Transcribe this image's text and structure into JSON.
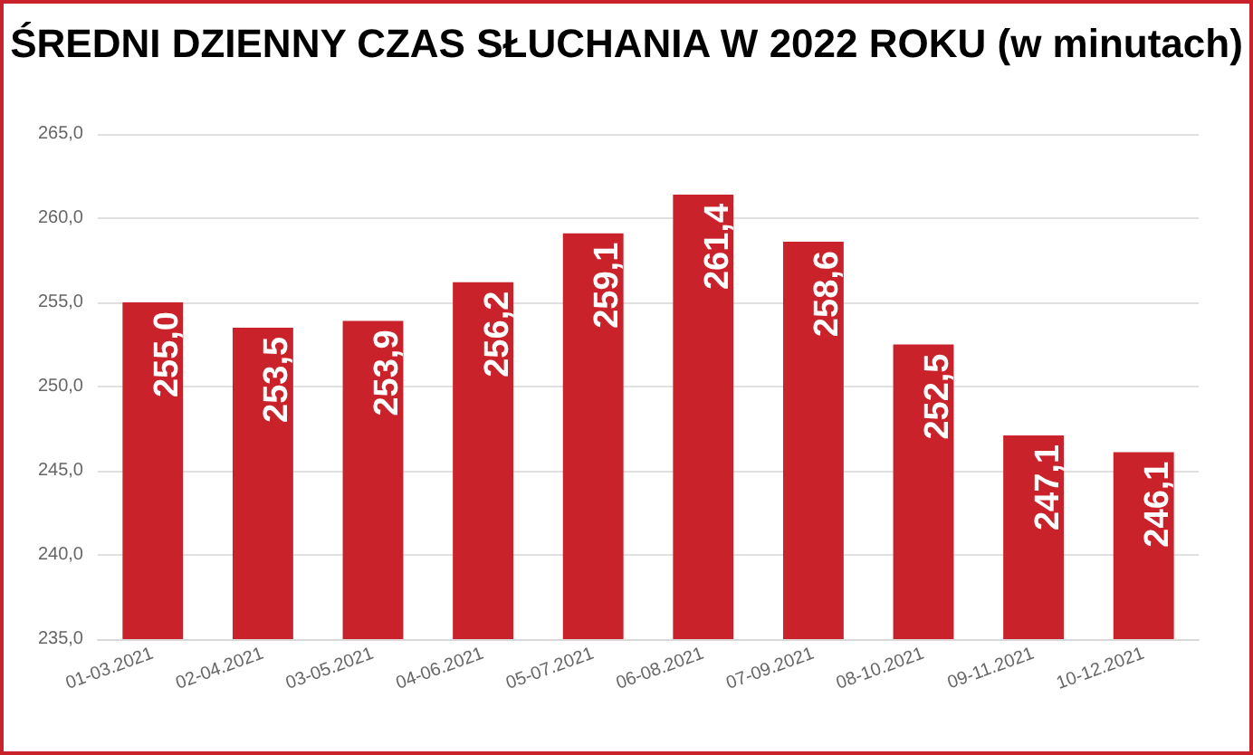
{
  "chart_data": {
    "type": "bar",
    "title": "ŚREDNI DZIENNY CZAS SŁUCHANIA W 2022 ROKU (w minutach)",
    "categories": [
      "01-03.2021",
      "02-04.2021",
      "03-05.2021",
      "04-06.2021",
      "05-07.2021",
      "06-08.2021",
      "07-09.2021",
      "08-10.2021",
      "09-11.2021",
      "10-12.2021"
    ],
    "values": [
      255.0,
      253.5,
      253.9,
      256.2,
      259.1,
      261.4,
      258.6,
      252.5,
      247.1,
      246.1
    ],
    "value_labels": [
      "255,0",
      "253,5",
      "253,9",
      "256,2",
      "259,1",
      "261,4",
      "258,6",
      "252,5",
      "247,1",
      "246,1"
    ],
    "color": "#c9222b",
    "ylim": [
      235,
      265
    ],
    "yticks": [
      {
        "value": 235,
        "label": "235,0"
      },
      {
        "value": 240,
        "label": "240,0"
      },
      {
        "value": 245,
        "label": "245,0"
      },
      {
        "value": 250,
        "label": "250,0"
      },
      {
        "value": 255,
        "label": "255,0"
      },
      {
        "value": 260,
        "label": "260,0"
      },
      {
        "value": 265,
        "label": "265,0"
      }
    ],
    "grid": "y"
  }
}
